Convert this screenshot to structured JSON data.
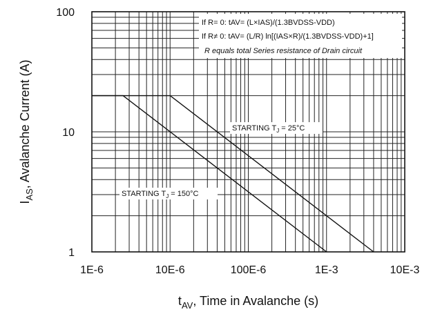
{
  "chart_data": {
    "type": "line",
    "xlabel": {
      "main": "t",
      "sub": "AV",
      "rest": ", Time in Avalanche (s)"
    },
    "ylabel": {
      "main": "I",
      "sub": "AS",
      "rest": ", Avalanche Current (A)"
    },
    "x_scale": "log",
    "y_scale": "log",
    "xlim": [
      1e-06,
      0.01
    ],
    "ylim": [
      1,
      100
    ],
    "x_ticks": [
      {
        "value": 1e-06,
        "label": "1E-6"
      },
      {
        "value": 1e-05,
        "label": "10E-6"
      },
      {
        "value": 0.0001,
        "label": "100E-6"
      },
      {
        "value": 0.001,
        "label": "1E-3"
      },
      {
        "value": 0.01,
        "label": "10E-3"
      }
    ],
    "y_ticks": [
      {
        "value": 1,
        "label": "1"
      },
      {
        "value": 10,
        "label": "10"
      },
      {
        "value": 100,
        "label": "100"
      }
    ],
    "grid": true,
    "series": [
      {
        "name": "STARTING T_J = 25°C",
        "label_main": "STARTING T",
        "label_sub": "J",
        "label_rest": " = 25°C",
        "x": [
          1e-06,
          1e-05,
          0.004
        ],
        "y": [
          20,
          20,
          1
        ]
      },
      {
        "name": "STARTING T_J = 150°C",
        "label_main": "STARTING T",
        "label_sub": "J",
        "label_rest": " = 150°C",
        "x": [
          1e-06,
          2.5e-06,
          0.001
        ],
        "y": [
          20,
          20,
          1
        ]
      }
    ],
    "annotations": [
      "If R= 0: tAV= (L×IAS)/(1.3BVDSS-VDD)",
      "If R≠ 0: tAV= (L/R) ln[(IAS×R)/(1.3BVDSS-VDD)+1]",
      "R equals total Series resistance of Drain circuit"
    ]
  }
}
